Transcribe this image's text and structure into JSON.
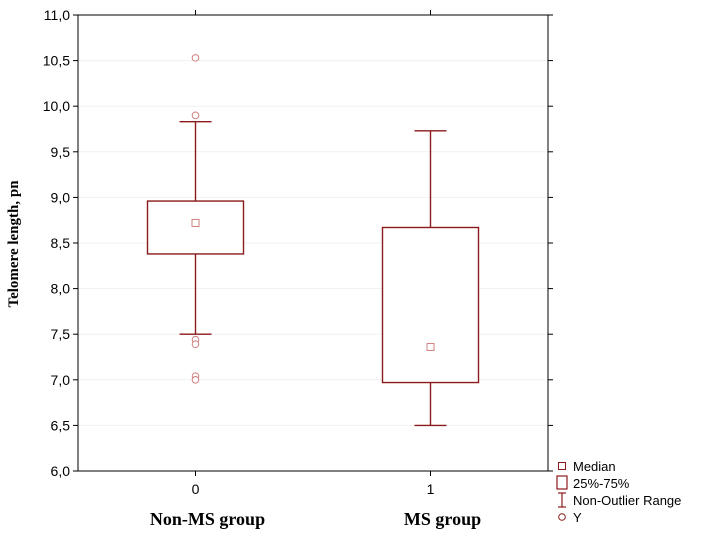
{
  "chart_data": {
    "type": "box",
    "title": "",
    "ylabel": "Telomere length, pn",
    "ylim": [
      6.0,
      11.0
    ],
    "yticks": [
      "6,0",
      "6,5",
      "7,0",
      "7,5",
      "8,0",
      "8,5",
      "9,0",
      "9,5",
      "10,0",
      "10,5",
      "11,0"
    ],
    "ytick_values": [
      6.0,
      6.5,
      7.0,
      7.5,
      8.0,
      8.5,
      9.0,
      9.5,
      10.0,
      10.5,
      11.0
    ],
    "xlim": [
      -0.5,
      1.5
    ],
    "xticks": [
      "0",
      "1"
    ],
    "grid": false,
    "legend_position": "bottom-right, outside plot",
    "colors": {
      "box": "#8b1a1a",
      "outlier": "#d08080",
      "axis": "#000000"
    },
    "groups": [
      {
        "x": 0,
        "tick": "0",
        "label": "Non-MS group",
        "median": 8.72,
        "q1": 8.38,
        "q3": 8.96,
        "whisker_low": 7.5,
        "whisker_high": 9.83,
        "outliers": [
          10.53,
          9.9,
          7.44,
          7.39,
          7.04,
          7.0
        ]
      },
      {
        "x": 1,
        "tick": "1",
        "label": "MS group",
        "median": 7.36,
        "q1": 6.97,
        "q3": 8.67,
        "whisker_low": 6.5,
        "whisker_high": 9.73,
        "outliers": []
      }
    ],
    "legend": [
      {
        "symbol": "median",
        "label": "Median"
      },
      {
        "symbol": "box",
        "label": "25%-75%"
      },
      {
        "symbol": "whisker",
        "label": "Non-Outlier Range"
      },
      {
        "symbol": "outlier",
        "label": "Y"
      }
    ]
  }
}
